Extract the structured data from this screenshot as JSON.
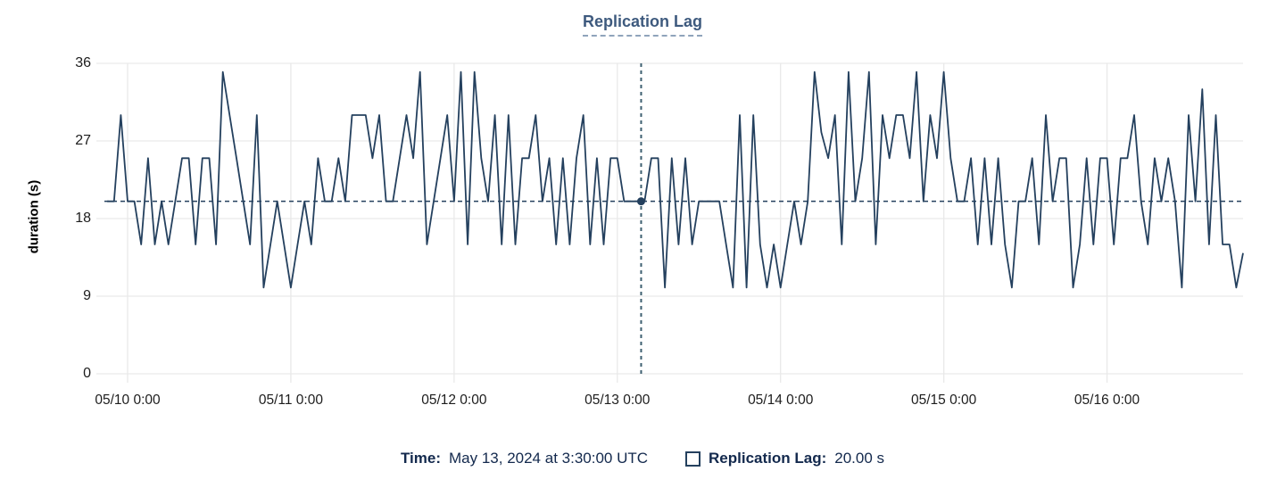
{
  "chart": {
    "title": "Replication Lag",
    "ylabel": "duration (s)",
    "colors": {
      "line": "#24405e",
      "marker": "#24405e",
      "reference_line": "#24405e",
      "crosshair": "#3d5f70",
      "grid": "#e9e9e9",
      "axis_text": "#1d1d1d",
      "title": "#3e5a7e",
      "title_underline": "#8fa3bb",
      "legend_text": "#13294d",
      "background": "#ffffff"
    }
  },
  "tooltip": {
    "time_label": "Time:",
    "time_value": "May 13, 2024 at 3:30:00 UTC",
    "series_label": "Replication Lag:",
    "series_value": "20.00 s",
    "swatch_icon": "square-outline"
  },
  "chart_data": {
    "type": "line",
    "title": "Replication Lag",
    "xlabel": "",
    "ylabel": "duration (s)",
    "ylim": [
      0,
      36
    ],
    "yticks": [
      0,
      9,
      18,
      27,
      36
    ],
    "x_tick_labels": [
      "05/10 0:00",
      "05/11 0:00",
      "05/12 0:00",
      "05/13 0:00",
      "05/14 0:00",
      "05/15 0:00",
      "05/16 0:00"
    ],
    "x_tick_hours": [
      0,
      24,
      48,
      72,
      96,
      120,
      144
    ],
    "x_unit": "hours relative to 05/10 00:00 UTC",
    "x_start_hour": -3,
    "x_interval_hours": 1,
    "x_end_hour": 164,
    "grid": true,
    "legend_position": "bottom",
    "series": [
      {
        "name": "Replication Lag",
        "unit": "s",
        "values": [
          20,
          20,
          30,
          20,
          20,
          15,
          25,
          15,
          20,
          15,
          20,
          25,
          25,
          15,
          25,
          25,
          15,
          35,
          30,
          25,
          20,
          15,
          30,
          10,
          15,
          20,
          15,
          10,
          15,
          20,
          15,
          25,
          20,
          20,
          25,
          20,
          30,
          30,
          30,
          25,
          30,
          20,
          20,
          25,
          30,
          25,
          35,
          15,
          20,
          25,
          30,
          20,
          35,
          15,
          35,
          25,
          20,
          30,
          15,
          30,
          15,
          25,
          25,
          30,
          20,
          25,
          15,
          25,
          15,
          25,
          30,
          15,
          25,
          15,
          25,
          25,
          20,
          20,
          20,
          20,
          25,
          25,
          10,
          25,
          15,
          25,
          15,
          20,
          20,
          20,
          20,
          15,
          10,
          30,
          10,
          30,
          15,
          10,
          15,
          10,
          15,
          20,
          15,
          20,
          35,
          28,
          25,
          30,
          15,
          35,
          20,
          25,
          35,
          15,
          30,
          25,
          30,
          30,
          25,
          35,
          20,
          30,
          25,
          35,
          25,
          20,
          20,
          25,
          15,
          25,
          15,
          25,
          15,
          10,
          20,
          20,
          25,
          15,
          30,
          20,
          25,
          25,
          10,
          15,
          25,
          15,
          25,
          25,
          15,
          25,
          25,
          30,
          20,
          15,
          25,
          20,
          25,
          20,
          10,
          30,
          20,
          33,
          15,
          30,
          15,
          15,
          10,
          14
        ]
      }
    ],
    "reference_line": {
      "y": 20,
      "label": "20.00 s",
      "style": "dashed"
    },
    "crosshair": {
      "x_hour": 75.5,
      "label": "May 13, 2024 at 3:30:00 UTC",
      "y": 20,
      "marker": "dot"
    }
  }
}
